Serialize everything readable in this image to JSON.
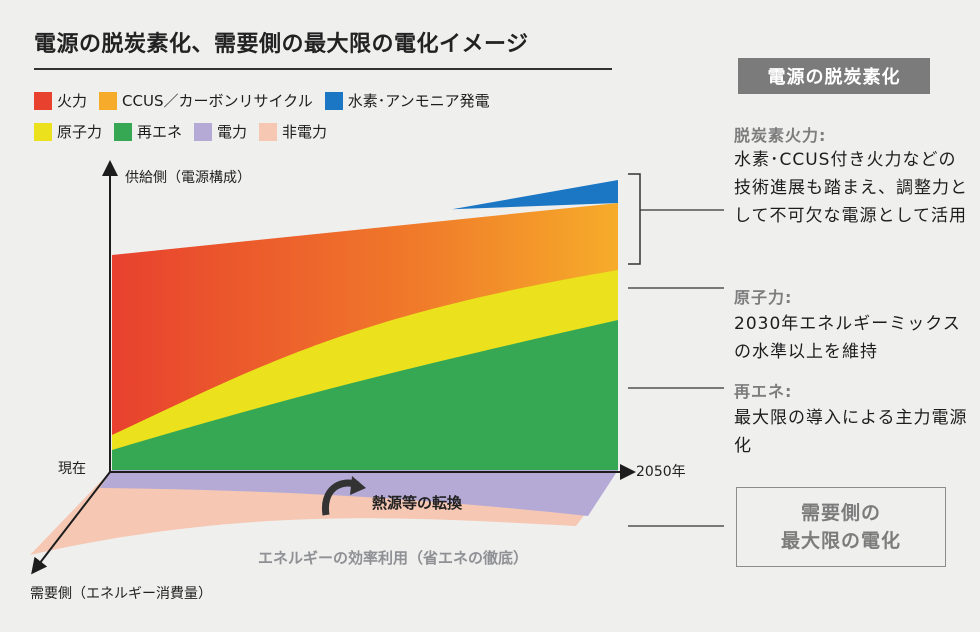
{
  "title": "電源の脱炭素化、需要側の最大限の電化イメージ",
  "legend_row1": [
    {
      "label": "火力",
      "color": "#e8412e"
    },
    {
      "label": "CCUS／カーボンリサイクル",
      "color": "#f6ac2a"
    },
    {
      "label": "水素･アンモニア発電",
      "color": "#1b77c4"
    }
  ],
  "legend_row2": [
    {
      "label": "原子力",
      "color": "#ebe11c"
    },
    {
      "label": "再エネ",
      "color": "#36a853"
    },
    {
      "label": "電力",
      "color": "#b5aad6"
    },
    {
      "label": "非電力",
      "color": "#f6c7b2"
    }
  ],
  "right_panel": {
    "badge": "電源の脱炭素化",
    "thermal_head": "脱炭素火力:",
    "thermal_body": "水素･CCUS付き火力などの技術進展も踏まえ、調整力として不可欠な電源として活用",
    "nuclear_head": "原子力:",
    "nuclear_body": "2030年エネルギーミックスの水準以上を維持",
    "renew_head": "再エネ:",
    "renew_body": "最大限の導入による主力電源化",
    "demand_line1": "需要側の",
    "demand_line2": "最大限の電化"
  },
  "chart_data": {
    "type": "area",
    "stacked": true,
    "x": [
      "現在",
      "2050年"
    ],
    "y_axis_label": "供給側（電源構成）",
    "z_axis_label": "需要側（エネルギー消費量）",
    "x_start_label": "現在",
    "x_end_label": "2050年",
    "supply_series": [
      {
        "name": "再エネ",
        "color": "#36a853",
        "values": [
          20,
          150
        ]
      },
      {
        "name": "原子力",
        "color": "#ebe11c",
        "values": [
          15,
          50
        ]
      },
      {
        "name": "火力",
        "color": "#e8412e",
        "values": [
          180,
          0
        ]
      },
      {
        "name": "CCUS／カーボンリサイクル",
        "color": "#f6ac2a",
        "values": [
          0,
          67
        ]
      },
      {
        "name": "水素･アンモニア発電",
        "color": "#1b77c4",
        "values": [
          0,
          23
        ]
      }
    ],
    "demand_series": [
      {
        "name": "電力",
        "color": "#b5aad6"
      },
      {
        "name": "非電力",
        "color": "#f6c7b2"
      }
    ],
    "annotations": {
      "fuel_switch": "熱源等の転換",
      "efficiency": "エネルギーの効率利用（省エネの徹底）"
    },
    "grid": false
  }
}
